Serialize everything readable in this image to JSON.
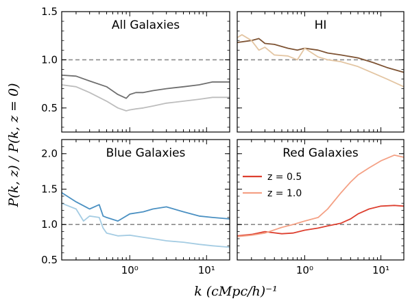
{
  "figure": {
    "ylabel": "P(k, z) / P(k, z = 0)",
    "xlabel": "k (cMpc/h)⁻¹"
  },
  "chart_data": [
    {
      "type": "line",
      "title": "All Galaxies",
      "xscale": "log",
      "xlim": [
        0.13,
        20
      ],
      "ylim": [
        0.25,
        1.5
      ],
      "yticks": [
        "0.5",
        "1.0",
        "1.5"
      ],
      "xticks": [],
      "reference_line": 1.0,
      "series": [
        {
          "color": "#6e6e6e",
          "x": [
            0.13,
            0.2,
            0.3,
            0.5,
            0.7,
            0.9,
            1.0,
            1.2,
            1.5,
            2,
            3,
            5,
            8,
            12,
            20
          ],
          "y": [
            0.84,
            0.83,
            0.78,
            0.72,
            0.64,
            0.6,
            0.64,
            0.66,
            0.66,
            0.68,
            0.7,
            0.72,
            0.74,
            0.77,
            0.77
          ]
        },
        {
          "color": "#bdbdbd",
          "x": [
            0.13,
            0.2,
            0.3,
            0.5,
            0.7,
            0.9,
            1.0,
            1.2,
            1.5,
            2,
            3,
            5,
            8,
            12,
            20
          ],
          "y": [
            0.74,
            0.72,
            0.66,
            0.57,
            0.5,
            0.47,
            0.48,
            0.49,
            0.5,
            0.52,
            0.55,
            0.57,
            0.59,
            0.61,
            0.61
          ]
        }
      ]
    },
    {
      "type": "line",
      "title": "HI",
      "xscale": "log",
      "xlim": [
        0.13,
        20
      ],
      "ylim": [
        0.25,
        1.5
      ],
      "yticks": [],
      "xticks": [],
      "reference_line": 1.0,
      "series": [
        {
          "color": "#7d5232",
          "x": [
            0.13,
            0.2,
            0.25,
            0.3,
            0.4,
            0.6,
            0.8,
            1.0,
            1.5,
            2,
            3,
            5,
            8,
            12,
            20
          ],
          "y": [
            1.18,
            1.2,
            1.22,
            1.17,
            1.16,
            1.12,
            1.1,
            1.12,
            1.1,
            1.07,
            1.05,
            1.02,
            0.97,
            0.92,
            0.87
          ]
        },
        {
          "color": "#e3c5a2",
          "x": [
            0.13,
            0.15,
            0.2,
            0.25,
            0.3,
            0.4,
            0.6,
            0.8,
            1.0,
            1.5,
            2,
            3,
            5,
            8,
            12,
            20
          ],
          "y": [
            1.23,
            1.26,
            1.2,
            1.1,
            1.13,
            1.05,
            1.04,
            1.0,
            1.12,
            1.03,
            1.0,
            0.98,
            0.93,
            0.86,
            0.8,
            0.72
          ]
        }
      ]
    },
    {
      "type": "line",
      "title": "Blue Galaxies",
      "xscale": "log",
      "xlim": [
        0.13,
        20
      ],
      "ylim": [
        0.5,
        2.2
      ],
      "yticks": [
        "0.5",
        "1.0",
        "1.5",
        "2.0"
      ],
      "xticks": [
        "10⁰",
        "10¹"
      ],
      "reference_line": 1.0,
      "series": [
        {
          "color": "#4a90c2",
          "x": [
            0.13,
            0.2,
            0.3,
            0.4,
            0.45,
            0.5,
            0.7,
            1.0,
            1.5,
            2,
            3,
            5,
            8,
            12,
            20
          ],
          "y": [
            1.45,
            1.32,
            1.22,
            1.28,
            1.12,
            1.1,
            1.05,
            1.15,
            1.18,
            1.22,
            1.25,
            1.18,
            1.12,
            1.1,
            1.08
          ]
        },
        {
          "color": "#a4cce3",
          "x": [
            0.13,
            0.2,
            0.25,
            0.3,
            0.4,
            0.45,
            0.5,
            0.7,
            1.0,
            1.5,
            2,
            3,
            5,
            8,
            12,
            20
          ],
          "y": [
            1.3,
            1.22,
            1.05,
            1.12,
            1.1,
            0.95,
            0.88,
            0.84,
            0.85,
            0.82,
            0.8,
            0.77,
            0.75,
            0.72,
            0.7,
            0.68
          ]
        }
      ]
    },
    {
      "type": "line",
      "title": "Red Galaxies",
      "xscale": "log",
      "xlim": [
        0.13,
        20
      ],
      "ylim": [
        0.5,
        2.2
      ],
      "yticks": [],
      "xticks": [
        "10⁰",
        "10¹"
      ],
      "reference_line": 1.0,
      "legend": "upper-left",
      "series": [
        {
          "name": "z = 0.5",
          "color": "#dd3f2f",
          "x": [
            0.13,
            0.2,
            0.3,
            0.5,
            0.7,
            1.0,
            1.5,
            2,
            3,
            4,
            5,
            7,
            10,
            15,
            20
          ],
          "y": [
            0.84,
            0.86,
            0.9,
            0.87,
            0.88,
            0.92,
            0.95,
            0.98,
            1.02,
            1.08,
            1.15,
            1.22,
            1.26,
            1.27,
            1.26
          ]
        },
        {
          "name": "z = 1.0",
          "color": "#f4a084",
          "x": [
            0.13,
            0.2,
            0.3,
            0.5,
            0.7,
            1.0,
            1.5,
            2,
            3,
            4,
            5,
            7,
            10,
            15,
            20
          ],
          "y": [
            0.83,
            0.85,
            0.88,
            0.96,
            1.0,
            1.05,
            1.1,
            1.22,
            1.45,
            1.6,
            1.7,
            1.8,
            1.9,
            1.98,
            1.95
          ]
        }
      ]
    }
  ]
}
